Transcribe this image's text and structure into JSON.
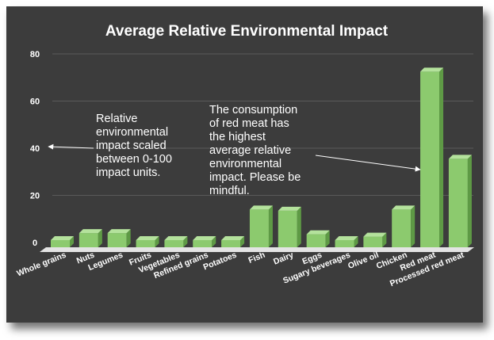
{
  "chart_data": {
    "type": "bar",
    "title": "Average Relative Environmental Impact",
    "xlabel": "",
    "ylabel": "",
    "ylim": [
      0,
      80
    ],
    "yticks": [
      0,
      20,
      40,
      60,
      80
    ],
    "grid": true,
    "categories": [
      "Whole grains",
      "Nuts",
      "Legumes",
      "Fruits",
      "Vegetables",
      "Refined grains",
      "Potatoes",
      "Fish",
      "Dairy",
      "Eggs",
      "Sugary beverages",
      "Olive oil",
      "Chicken",
      "Red meat",
      "Processed red meat"
    ],
    "values": [
      1,
      4,
      4,
      0.7,
      0.5,
      1,
      1,
      14,
      13.5,
      3.5,
      0.5,
      2.5,
      14,
      72.5,
      35.5
    ],
    "colors": {
      "bar_front": "#8cca6e",
      "bar_side": "#5e9a45",
      "bar_top": "#b4e29c",
      "floor": "#e4e4e4",
      "background": "#3c3c3c"
    }
  },
  "annotations": [
    {
      "id": "scale-note",
      "text": "Relative environmental impact scaled between 0-100 impact units."
    },
    {
      "id": "red-meat-note",
      "text": "The consumption of red meat has the highest average relative environmental impact. Please be mindful."
    }
  ]
}
